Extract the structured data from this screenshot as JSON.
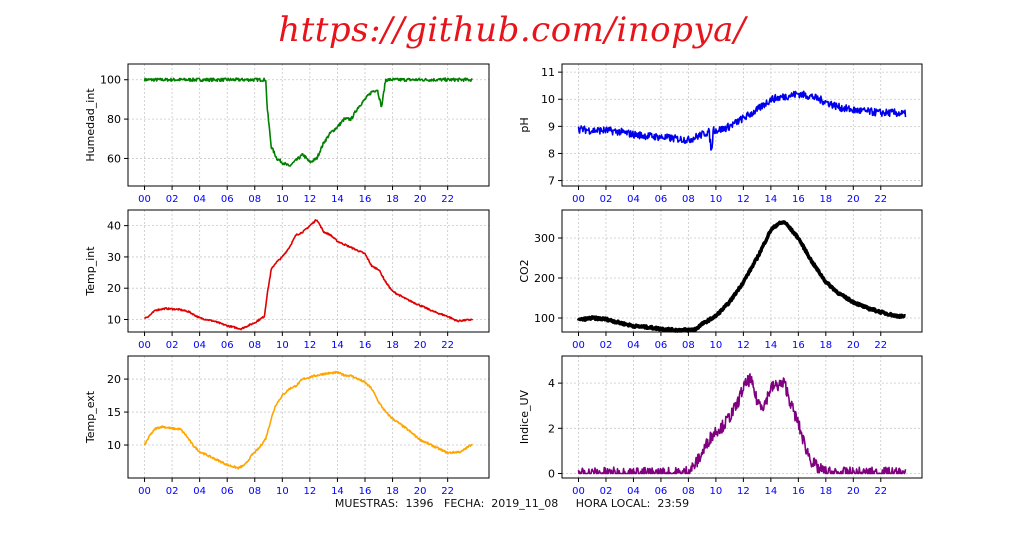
{
  "header": {
    "title": "https://github.com/inopya/"
  },
  "footer": {
    "muestras_label": "MUESTRAS:",
    "muestras_value": "1396",
    "fecha_label": "FECHA:",
    "fecha_value": "2019_11_08",
    "hora_label": "HORA LOCAL:",
    "hora_value": "23:59"
  },
  "chart_data": [
    {
      "type": "line",
      "ylabel": "Humedad_int",
      "color": "#007f00",
      "xlim": [
        -1.2,
        25
      ],
      "ylim": [
        46,
        108
      ],
      "yticks": [
        60,
        80,
        100
      ],
      "xticks": [
        "00",
        "02",
        "04",
        "06",
        "08",
        "10",
        "12",
        "14",
        "16",
        "18",
        "20",
        "22"
      ],
      "grid": true,
      "noise": 0.8,
      "x": [
        0,
        8.8,
        8.9,
        9.2,
        9.6,
        10.0,
        10.5,
        11.0,
        11.5,
        12.0,
        12.5,
        13.0,
        13.5,
        14.0,
        14.5,
        15.0,
        15.5,
        16.0,
        16.5,
        16.9,
        17.2,
        17.5,
        17.8,
        18.0,
        23.8
      ],
      "y": [
        100,
        100,
        86,
        66,
        60,
        58,
        56,
        59,
        62,
        58,
        60,
        68,
        73,
        76,
        80,
        80,
        86,
        90,
        94,
        95,
        86,
        100,
        100,
        100,
        100
      ]
    },
    {
      "type": "line",
      "ylabel": "Temp_int",
      "color": "#e00000",
      "xlim": [
        -1.2,
        25
      ],
      "ylim": [
        6,
        45
      ],
      "yticks": [
        10,
        20,
        30,
        40
      ],
      "xticks": [
        "00",
        "02",
        "04",
        "06",
        "08",
        "10",
        "12",
        "14",
        "16",
        "18",
        "20",
        "22"
      ],
      "grid": true,
      "noise": 0.25,
      "x": [
        0,
        0.3,
        0.8,
        1.5,
        2.5,
        3.2,
        4.0,
        5.0,
        6.0,
        7.0,
        8.0,
        8.7,
        8.9,
        9.2,
        9.5,
        10.0,
        10.5,
        11.0,
        11.5,
        12.0,
        12.5,
        13.0,
        13.5,
        14.0,
        15.0,
        16.0,
        16.5,
        17.0,
        17.5,
        18.0,
        19.0,
        20.0,
        21.0,
        22.0,
        22.7,
        23.8
      ],
      "y": [
        10.5,
        11,
        13,
        13.5,
        13.2,
        12.5,
        10.5,
        9.5,
        8,
        7,
        9,
        11,
        18,
        26,
        28,
        30,
        33,
        37,
        38,
        40,
        42,
        38,
        37,
        35,
        33,
        31,
        27,
        26,
        22,
        19,
        16.5,
        14.5,
        12.5,
        11,
        9.5,
        10
      ]
    },
    {
      "type": "line",
      "ylabel": "Temp_ext",
      "color": "#ffa500",
      "xlim": [
        -1.2,
        25
      ],
      "ylim": [
        5,
        23.5
      ],
      "yticks": [
        10,
        15,
        20
      ],
      "xticks": [
        "00",
        "02",
        "04",
        "06",
        "08",
        "10",
        "12",
        "14",
        "16",
        "18",
        "20",
        "22"
      ],
      "grid": true,
      "noise": 0.15,
      "x": [
        0,
        0.4,
        0.8,
        1.3,
        2.0,
        2.6,
        3.0,
        3.5,
        4.0,
        5.0,
        6.0,
        6.8,
        7.3,
        7.8,
        8.3,
        8.8,
        9.2,
        9.5,
        10.0,
        10.5,
        11.0,
        11.5,
        12.0,
        13.0,
        14.0,
        14.5,
        15.0,
        16.0,
        16.5,
        17.0,
        17.5,
        18.0,
        19.0,
        20.0,
        21.0,
        22.0,
        23.0,
        23.8
      ],
      "y": [
        10,
        11.5,
        12.5,
        12.8,
        12.5,
        12.4,
        11.5,
        10,
        9,
        8,
        7,
        6.5,
        7,
        8.5,
        9.5,
        11,
        14,
        16,
        17.5,
        18.5,
        19,
        20,
        20.3,
        20.8,
        21,
        20.6,
        20.5,
        19.5,
        18.5,
        16.5,
        15,
        14,
        12.5,
        10.8,
        9.8,
        8.8,
        9.0,
        10.2
      ]
    },
    {
      "type": "line",
      "ylabel": "pH",
      "color": "#0000ee",
      "xlim": [
        -1.2,
        25
      ],
      "ylim": [
        6.8,
        11.3
      ],
      "yticks": [
        7,
        8,
        9,
        10,
        11
      ],
      "xticks": [
        "00",
        "02",
        "04",
        "06",
        "08",
        "10",
        "12",
        "14",
        "16",
        "18",
        "20",
        "22"
      ],
      "grid": true,
      "noise": 0.14,
      "x": [
        0,
        1,
        2,
        3,
        4,
        5,
        6,
        7,
        8,
        9,
        9.5,
        9.7,
        9.8,
        10.0,
        10.5,
        11.0,
        12.0,
        13.0,
        14.0,
        15.0,
        16.0,
        17.0,
        18.0,
        19.0,
        20.0,
        21.0,
        22.0,
        23.0,
        23.8
      ],
      "y": [
        8.9,
        8.85,
        8.85,
        8.8,
        8.7,
        8.65,
        8.6,
        8.55,
        8.5,
        8.7,
        8.8,
        8.0,
        8.9,
        8.85,
        8.9,
        9.0,
        9.3,
        9.6,
        10.0,
        10.1,
        10.2,
        10.1,
        9.9,
        9.7,
        9.6,
        9.55,
        9.5,
        9.5,
        9.45
      ]
    },
    {
      "type": "line",
      "ylabel": "CO2",
      "color": "#000000",
      "xlim": [
        -1.2,
        25
      ],
      "ylim": [
        65,
        370
      ],
      "yticks": [
        100,
        200,
        300
      ],
      "xticks": [
        "00",
        "02",
        "04",
        "06",
        "08",
        "10",
        "12",
        "14",
        "16",
        "18",
        "20",
        "22"
      ],
      "grid": true,
      "noise": 3,
      "stroke": 3.5,
      "x": [
        0,
        1,
        2,
        3,
        4,
        5,
        6,
        7,
        8,
        8.5,
        9.0,
        10.0,
        11.0,
        12.0,
        13.0,
        14.0,
        14.5,
        15.0,
        16.0,
        17.0,
        18.0,
        19.0,
        20.0,
        21.0,
        22.0,
        23.0,
        23.8
      ],
      "y": [
        95,
        100,
        97,
        88,
        80,
        77,
        73,
        70,
        70,
        72,
        85,
        105,
        140,
        190,
        250,
        320,
        335,
        340,
        300,
        240,
        190,
        160,
        140,
        125,
        115,
        106,
        103
      ]
    },
    {
      "type": "line",
      "ylabel": "Indice_UV",
      "color": "#800080",
      "xlim": [
        -1.2,
        25
      ],
      "ylim": [
        -0.2,
        5.2
      ],
      "yticks": [
        0,
        2,
        4
      ],
      "xticks": [
        "00",
        "02",
        "04",
        "06",
        "08",
        "10",
        "12",
        "14",
        "16",
        "18",
        "20",
        "22"
      ],
      "grid": true,
      "noise": 0.28,
      "x": [
        0,
        7.0,
        7.5,
        8.0,
        8.5,
        9.0,
        9.5,
        10.0,
        10.5,
        11.0,
        11.5,
        12.0,
        12.5,
        13.0,
        13.5,
        14.0,
        14.5,
        15.0,
        15.5,
        16.0,
        16.5,
        17.0,
        17.5,
        18.0,
        18.5,
        23.8
      ],
      "y": [
        0,
        0,
        0,
        0.1,
        0.4,
        0.9,
        1.5,
        1.9,
        2.1,
        2.5,
        3.0,
        3.8,
        4.2,
        3.2,
        3.0,
        3.8,
        3.9,
        4.0,
        3.0,
        2.2,
        1.2,
        0.5,
        0.2,
        0.05,
        0,
        0
      ]
    }
  ]
}
